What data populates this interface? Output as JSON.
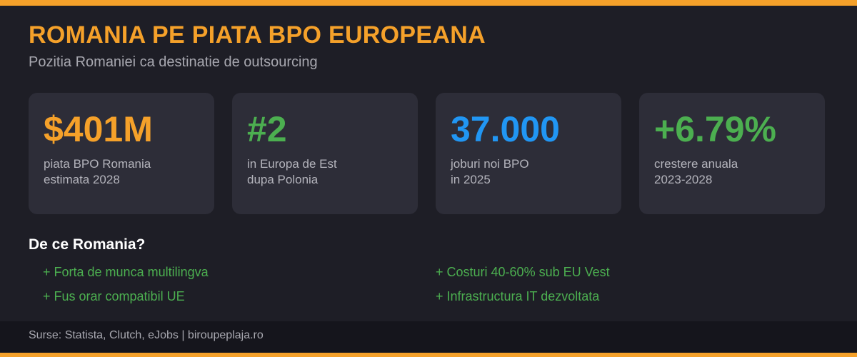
{
  "header": {
    "title": "ROMANIA PE PIATA BPO EUROPEANA",
    "subtitle": "Pozitia Romaniei ca destinatie de outsourcing"
  },
  "stats": [
    {
      "value": "$401M",
      "color": "#f5a12a",
      "lines": [
        "piata BPO Romania",
        "estimata 2028"
      ]
    },
    {
      "value": "#2",
      "color": "#4caf50",
      "lines": [
        "in Europa de Est",
        "dupa Polonia"
      ]
    },
    {
      "value": "37.000",
      "color": "#2196f3",
      "lines": [
        "joburi noi BPO",
        "in 2025"
      ]
    },
    {
      "value": "+6.79%",
      "color": "#4caf50",
      "lines": [
        "crestere anuala",
        "2023-2028"
      ]
    }
  ],
  "reasons": {
    "title": "De ce Romania?",
    "items": [
      "+ Forta de munca multilingva",
      "+ Costuri 40-60% sub EU Vest",
      "+ Fus orar compatibil UE",
      "+ Infrastructura IT dezvoltata"
    ]
  },
  "footer": {
    "source": "Surse: Statista, Clutch, eJobs | biroupeplaja.ro"
  }
}
